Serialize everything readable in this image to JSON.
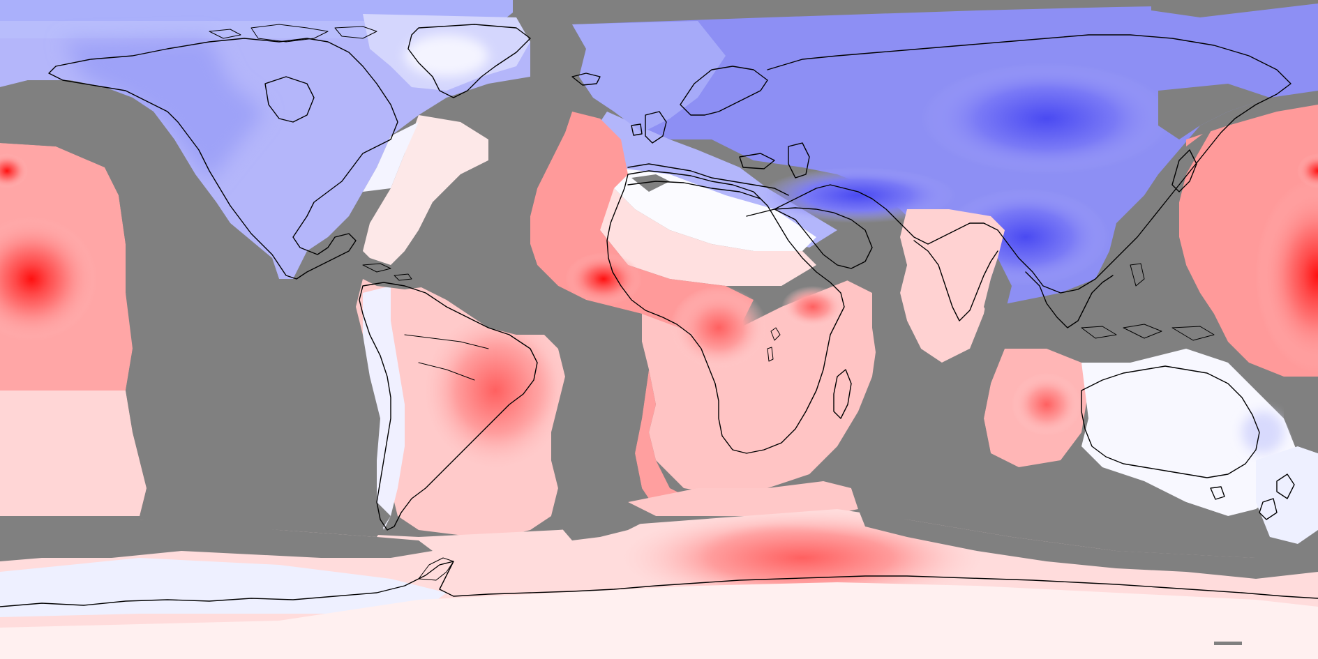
{
  "map": {
    "projection": "equirectangular",
    "extent": {
      "lon": [
        -180,
        180
      ],
      "lat": [
        -90,
        90
      ]
    },
    "colorscale": {
      "type": "diverging",
      "low_color": "#3c3cf5",
      "mid_color": "#ffffff",
      "high_color": "#ff0000",
      "no_data_color": "#808080"
    },
    "coastlines": {
      "color": "#000000"
    }
  }
}
